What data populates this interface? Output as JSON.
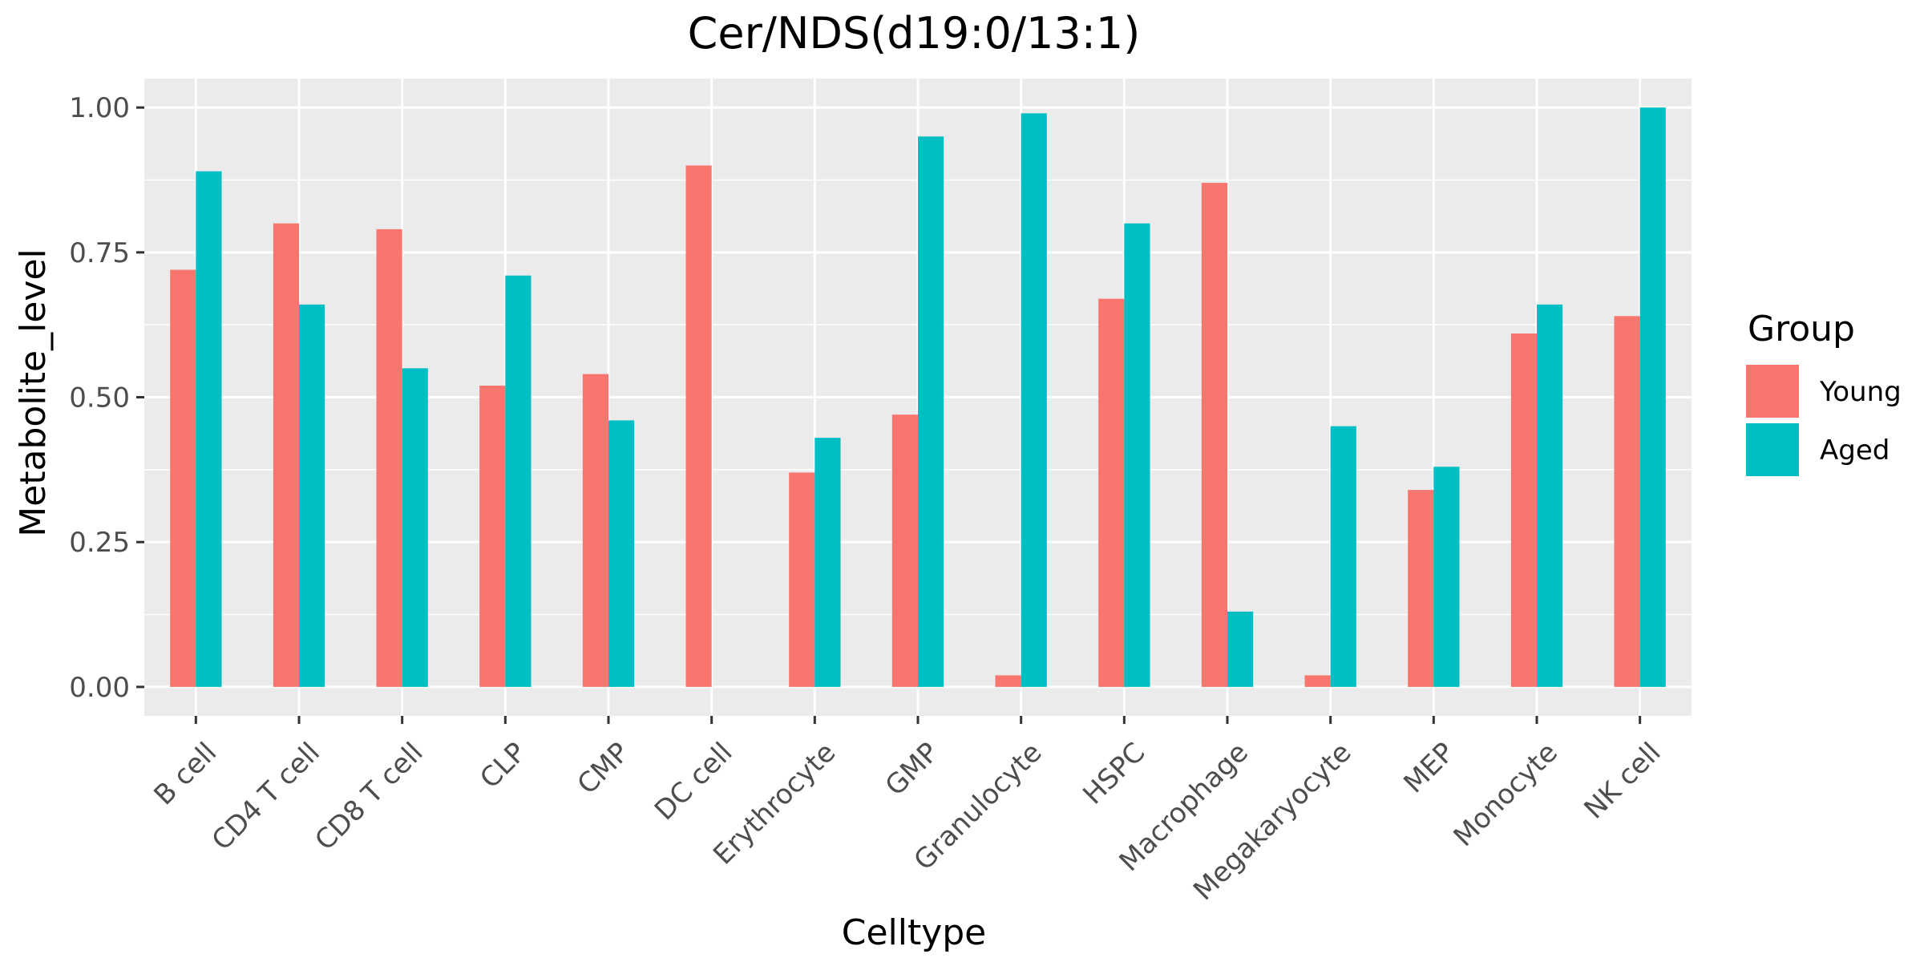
{
  "chart_data": {
    "type": "bar",
    "title": "Cer/NDS(d19:0/13:1)",
    "xlabel": "Celltype",
    "ylabel": "Metabolite_level",
    "categories": [
      "B cell",
      "CD4 T cell",
      "CD8 T cell",
      "CLP",
      "CMP",
      "DC cell",
      "Erythrocyte",
      "GMP",
      "Granulocyte",
      "HSPC",
      "Macrophage",
      "Megakaryocyte",
      "MEP",
      "Monocyte",
      "NK cell"
    ],
    "series": [
      {
        "name": "Young",
        "color": "#F8766D",
        "values": [
          0.72,
          0.8,
          0.79,
          0.52,
          0.54,
          0.9,
          0.37,
          0.47,
          0.02,
          0.67,
          0.87,
          0.02,
          0.34,
          0.61,
          0.64
        ]
      },
      {
        "name": "Aged",
        "color": "#00BFC4",
        "values": [
          0.89,
          0.66,
          0.55,
          0.71,
          0.46,
          0.0,
          0.43,
          0.95,
          0.99,
          0.8,
          0.13,
          0.45,
          0.38,
          0.66,
          1.0
        ]
      }
    ],
    "ylim": [
      -0.05,
      1.05
    ],
    "yticks": [
      0.0,
      0.25,
      0.5,
      0.75,
      1.0
    ],
    "ytick_labels": [
      "0.00",
      "0.25",
      "0.50",
      "0.75",
      "1.00"
    ],
    "legend": {
      "title": "Group",
      "position": "right"
    },
    "grid": true
  }
}
